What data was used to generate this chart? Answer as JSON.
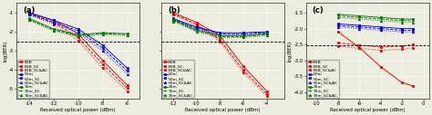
{
  "panels": [
    {
      "label": "(a)",
      "xlim": [
        -15.0,
        -5.0
      ],
      "ylim": [
        -5.5,
        -0.5
      ],
      "xticks": [
        -14,
        -12,
        -10,
        -8,
        -6
      ],
      "yticks": [
        -5,
        -4,
        -3,
        -2,
        -1
      ],
      "show_yticklabels": true,
      "xlabel": "Received optical power (dBm)",
      "ylabel": "log(BER)",
      "dashed_line_y": -2.52,
      "series": [
        {
          "label": "B2B",
          "color": "#dd0000",
          "marker": "s",
          "linestyle": "-",
          "x": [
            -14,
            -12,
            -10,
            -8,
            -6
          ],
          "y": [
            -1.0,
            -1.4,
            -2.1,
            -3.5,
            -4.8
          ]
        },
        {
          "label": "B2B_SC",
          "color": "#dd0000",
          "marker": "s",
          "linestyle": "--",
          "x": [
            -14,
            -12,
            -10,
            -8,
            -6
          ],
          "y": [
            -1.05,
            -1.5,
            -2.3,
            -3.7,
            -4.95
          ]
        },
        {
          "label": "B2B_SC&AC",
          "color": "#dd0000",
          "marker": "s",
          "linestyle": ":",
          "x": [
            -14,
            -12,
            -10,
            -8,
            -6
          ],
          "y": [
            -1.1,
            -1.6,
            -2.45,
            -3.9,
            -5.1
          ]
        },
        {
          "label": "50m",
          "color": "#0000dd",
          "marker": "s",
          "linestyle": "-",
          "x": [
            -14,
            -12,
            -10,
            -8,
            -6
          ],
          "y": [
            -1.0,
            -1.4,
            -1.85,
            -2.7,
            -3.9
          ]
        },
        {
          "label": "50m_SC",
          "color": "#0000dd",
          "marker": "s",
          "linestyle": "--",
          "x": [
            -14,
            -12,
            -10,
            -8,
            -6
          ],
          "y": [
            -1.05,
            -1.5,
            -1.95,
            -2.85,
            -4.05
          ]
        },
        {
          "label": "50m_SC&AC",
          "color": "#0000dd",
          "marker": "^",
          "linestyle": ":",
          "x": [
            -14,
            -12,
            -10,
            -8,
            -6
          ],
          "y": [
            -1.1,
            -1.55,
            -2.05,
            -3.0,
            -4.2
          ]
        },
        {
          "label": "70m",
          "color": "#007700",
          "marker": "s",
          "linestyle": "-",
          "x": [
            -14,
            -12,
            -10,
            -8,
            -6
          ],
          "y": [
            -1.3,
            -1.85,
            -2.15,
            -2.05,
            -2.1
          ]
        },
        {
          "label": "70m_SC",
          "color": "#007700",
          "marker": "+",
          "linestyle": "--",
          "x": [
            -14,
            -12,
            -10,
            -8,
            -6
          ],
          "y": [
            -1.35,
            -1.9,
            -2.2,
            -2.1,
            -2.15
          ]
        },
        {
          "label": "70m_SC&AC",
          "color": "#007700",
          "marker": "^",
          "linestyle": ":",
          "x": [
            -14,
            -12,
            -10,
            -8,
            -6
          ],
          "y": [
            -1.4,
            -1.95,
            -2.25,
            -2.15,
            -2.2
          ]
        }
      ]
    },
    {
      "label": "(b)",
      "xlim": [
        -13.0,
        -2.5
      ],
      "ylim": [
        -5.5,
        -0.5
      ],
      "xticks": [
        -12,
        -10,
        -8,
        -6,
        -4
      ],
      "yticks": [
        -5,
        -4,
        -3,
        -2,
        -1
      ],
      "show_yticklabels": false,
      "xlabel": "Received optical power (dBm)",
      "ylabel": "log(BER)",
      "dashed_line_y": -2.52,
      "series": [
        {
          "label": "B2B",
          "color": "#dd0000",
          "marker": "s",
          "linestyle": "-",
          "x": [
            -12,
            -10,
            -8,
            -6,
            -4
          ],
          "y": [
            -1.0,
            -1.5,
            -2.2,
            -3.8,
            -5.1
          ]
        },
        {
          "label": "B2B_SC",
          "color": "#dd0000",
          "marker": "s",
          "linestyle": "--",
          "x": [
            -12,
            -10,
            -8,
            -6,
            -4
          ],
          "y": [
            -1.05,
            -1.6,
            -2.4,
            -4.0,
            -5.25
          ]
        },
        {
          "label": "B2B_SC&AC",
          "color": "#dd0000",
          "marker": "s",
          "linestyle": ":",
          "x": [
            -12,
            -10,
            -8,
            -6,
            -4
          ],
          "y": [
            -1.1,
            -1.65,
            -2.5,
            -4.15,
            -5.35
          ]
        },
        {
          "label": "50m",
          "color": "#0000dd",
          "marker": "s",
          "linestyle": "-",
          "x": [
            -12,
            -10,
            -8,
            -6,
            -4
          ],
          "y": [
            -1.3,
            -1.75,
            -2.05,
            -2.05,
            -2.0
          ]
        },
        {
          "label": "50m_SC",
          "color": "#0000dd",
          "marker": "s",
          "linestyle": "--",
          "x": [
            -12,
            -10,
            -8,
            -6,
            -4
          ],
          "y": [
            -1.35,
            -1.8,
            -2.1,
            -2.1,
            -2.05
          ]
        },
        {
          "label": "50m_SC&AC",
          "color": "#0000dd",
          "marker": "^",
          "linestyle": ":",
          "x": [
            -12,
            -10,
            -8,
            -6,
            -4
          ],
          "y": [
            -1.4,
            -1.85,
            -2.15,
            -2.15,
            -2.1
          ]
        },
        {
          "label": "70m",
          "color": "#007700",
          "marker": "s",
          "linestyle": "-",
          "x": [
            -12,
            -10,
            -8,
            -6,
            -4
          ],
          "y": [
            -1.35,
            -1.9,
            -2.2,
            -2.2,
            -2.1
          ]
        },
        {
          "label": "70m_SC",
          "color": "#007700",
          "marker": "+",
          "linestyle": "--",
          "x": [
            -12,
            -10,
            -8,
            -6,
            -4
          ],
          "y": [
            -1.4,
            -1.95,
            -2.25,
            -2.25,
            -2.15
          ]
        },
        {
          "label": "70m_SC&AC",
          "color": "#007700",
          "marker": "^",
          "linestyle": ":",
          "x": [
            -12,
            -10,
            -8,
            -6,
            -4
          ],
          "y": [
            -1.45,
            -2.0,
            -2.3,
            -2.3,
            -2.2
          ]
        }
      ]
    },
    {
      "label": "(c)",
      "xlim": [
        -11.0,
        0.5
      ],
      "ylim": [
        -4.2,
        -1.2
      ],
      "xticks": [
        -10,
        -8,
        -6,
        -4,
        -2,
        0
      ],
      "yticks": [
        -4.0,
        -3.5,
        -3.0,
        -2.5,
        -2.0,
        -1.5
      ],
      "show_yticklabels": true,
      "xlabel": "Received optical power (dBm)",
      "ylabel": "log(BER)",
      "dashed_line_y": -2.52,
      "series": [
        {
          "label": "B2B",
          "color": "#dd0000",
          "marker": "s",
          "linestyle": "-",
          "x": [
            -8,
            -6,
            -4,
            -2,
            -1
          ],
          "y": [
            -2.1,
            -2.6,
            -3.2,
            -3.7,
            -3.8
          ]
        },
        {
          "label": "B2B_SC",
          "color": "#dd0000",
          "marker": "s",
          "linestyle": "--",
          "x": [
            -8,
            -6,
            -4,
            -2,
            -1
          ],
          "y": [
            -2.45,
            -2.52,
            -2.58,
            -2.55,
            -2.5
          ]
        },
        {
          "label": "B2B_SC&AC",
          "color": "#dd0000",
          "marker": "s",
          "linestyle": ":",
          "x": [
            -8,
            -6,
            -4,
            -2,
            -1
          ],
          "y": [
            -2.55,
            -2.62,
            -2.68,
            -2.65,
            -2.6
          ]
        },
        {
          "label": "50m",
          "color": "#0000dd",
          "marker": "s",
          "linestyle": "-",
          "x": [
            -8,
            -6,
            -4,
            -2,
            -1
          ],
          "y": [
            -1.85,
            -1.9,
            -1.95,
            -2.0,
            -2.0
          ]
        },
        {
          "label": "50m_SC",
          "color": "#0000dd",
          "marker": "s",
          "linestyle": "--",
          "x": [
            -8,
            -6,
            -4,
            -2,
            -1
          ],
          "y": [
            -1.9,
            -1.95,
            -2.0,
            -2.05,
            -2.05
          ]
        },
        {
          "label": "50m_SC&AC",
          "color": "#0000dd",
          "marker": "^",
          "linestyle": ":",
          "x": [
            -8,
            -6,
            -4,
            -2,
            -1
          ],
          "y": [
            -1.95,
            -2.0,
            -2.05,
            -2.1,
            -2.1
          ]
        },
        {
          "label": "70m",
          "color": "#007700",
          "marker": "s",
          "linestyle": "-",
          "x": [
            -8,
            -6,
            -4,
            -2,
            -1
          ],
          "y": [
            -1.55,
            -1.6,
            -1.65,
            -1.7,
            -1.7
          ]
        },
        {
          "label": "70m_SC",
          "color": "#007700",
          "marker": "+",
          "linestyle": "--",
          "x": [
            -8,
            -6,
            -4,
            -2,
            -1
          ],
          "y": [
            -1.6,
            -1.65,
            -1.7,
            -1.75,
            -1.75
          ]
        },
        {
          "label": "70m_SC&AC",
          "color": "#007700",
          "marker": "^",
          "linestyle": ":",
          "x": [
            -8,
            -6,
            -4,
            -2,
            -1
          ],
          "y": [
            -1.65,
            -1.7,
            -1.75,
            -1.8,
            -1.8
          ]
        }
      ]
    }
  ],
  "bg_color": "#ececdf",
  "grid_color": "#ffffff",
  "fontsize_label": 4.0,
  "fontsize_tick": 3.8,
  "fontsize_legend": 3.2,
  "fontsize_panel": 6.0,
  "marker_size": 1.8,
  "linewidth": 0.65
}
